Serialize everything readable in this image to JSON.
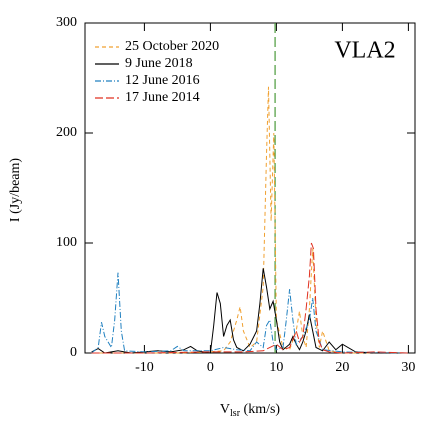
{
  "chart_data": {
    "type": "line",
    "annotation": "VLA2",
    "y_label": "I (Jy/beam)",
    "x_label": [
      "V",
      "lsr",
      " (km/s)"
    ],
    "xlim": [
      -19,
      31
    ],
    "ylim": [
      0,
      300
    ],
    "xticks": [
      -10,
      0,
      10,
      20,
      30
    ],
    "yticks": [
      0,
      100,
      200,
      300
    ],
    "legend": "upper left",
    "reference_line": {
      "x": 9.8,
      "color": "#4a9a3a"
    },
    "series": [
      {
        "name": "25 October 2020",
        "color": "#f0a030",
        "dash": "4,3",
        "x": [
          -18,
          -10,
          -5,
          0,
          2,
          3,
          4,
          4.5,
          5,
          6,
          7,
          8,
          8.5,
          8.8,
          9.2,
          9.6,
          10,
          11,
          12,
          13,
          13.5,
          14,
          14.5,
          15,
          15.5,
          16,
          16.5,
          17,
          18,
          20,
          30
        ],
        "values": [
          0,
          0,
          0,
          1,
          2,
          10,
          30,
          42,
          20,
          5,
          10,
          60,
          180,
          242,
          120,
          200,
          30,
          5,
          3,
          20,
          38,
          15,
          5,
          40,
          95,
          30,
          5,
          20,
          2,
          0,
          0
        ]
      },
      {
        "name": "9 June 2018",
        "color": "#000000",
        "dash": "none",
        "x": [
          -18,
          -17,
          -16,
          -14,
          -12,
          -10,
          -8,
          -6,
          -4,
          -3,
          -2,
          -1,
          0,
          0.5,
          1,
          1.5,
          2,
          2.5,
          3,
          3.5,
          4,
          5,
          6,
          7,
          7.5,
          8,
          8.5,
          9,
          9.5,
          10,
          10.5,
          11,
          12,
          12.5,
          13,
          13.5,
          14,
          14.5,
          15,
          15.5,
          16,
          17,
          18,
          19,
          20,
          22,
          25,
          30
        ],
        "values": [
          1,
          4,
          0,
          2,
          0,
          1,
          2,
          1,
          3,
          6,
          2,
          1,
          0,
          25,
          55,
          45,
          15,
          25,
          30,
          12,
          5,
          2,
          8,
          20,
          45,
          77,
          60,
          40,
          47,
          30,
          10,
          3,
          8,
          15,
          8,
          3,
          10,
          20,
          35,
          20,
          5,
          2,
          10,
          3,
          8,
          1,
          0,
          0
        ]
      },
      {
        "name": "12 June 2016",
        "color": "#2080c0",
        "dash": "6,2,1,2",
        "x": [
          -18,
          -17,
          -16.5,
          -16,
          -15.5,
          -15,
          -14.5,
          -14,
          -13.5,
          -13,
          -10,
          -6,
          -5,
          -4,
          0,
          2,
          4,
          6,
          7,
          8,
          8.5,
          9,
          9.5,
          10,
          11,
          11.5,
          12,
          12.5,
          13,
          14,
          15,
          15.5,
          16,
          17,
          20,
          30
        ],
        "values": [
          0,
          5,
          28,
          15,
          10,
          5,
          30,
          73,
          20,
          2,
          1,
          2,
          6,
          2,
          2,
          5,
          3,
          2,
          10,
          5,
          25,
          30,
          10,
          3,
          5,
          30,
          58,
          30,
          8,
          15,
          30,
          50,
          20,
          3,
          1,
          0
        ]
      },
      {
        "name": "17 June 2014",
        "color": "#e03020",
        "dash": "8,3",
        "x": [
          -18,
          -10,
          0,
          5,
          8,
          10,
          11,
          12,
          13,
          13.5,
          14,
          14.5,
          15,
          15.3,
          15.6,
          16,
          16.5,
          17,
          18,
          20,
          25,
          30
        ],
        "values": [
          0,
          0,
          1,
          1,
          2,
          8,
          3,
          5,
          20,
          10,
          15,
          40,
          70,
          100,
          95,
          40,
          10,
          3,
          1,
          0,
          1,
          0
        ]
      }
    ]
  }
}
